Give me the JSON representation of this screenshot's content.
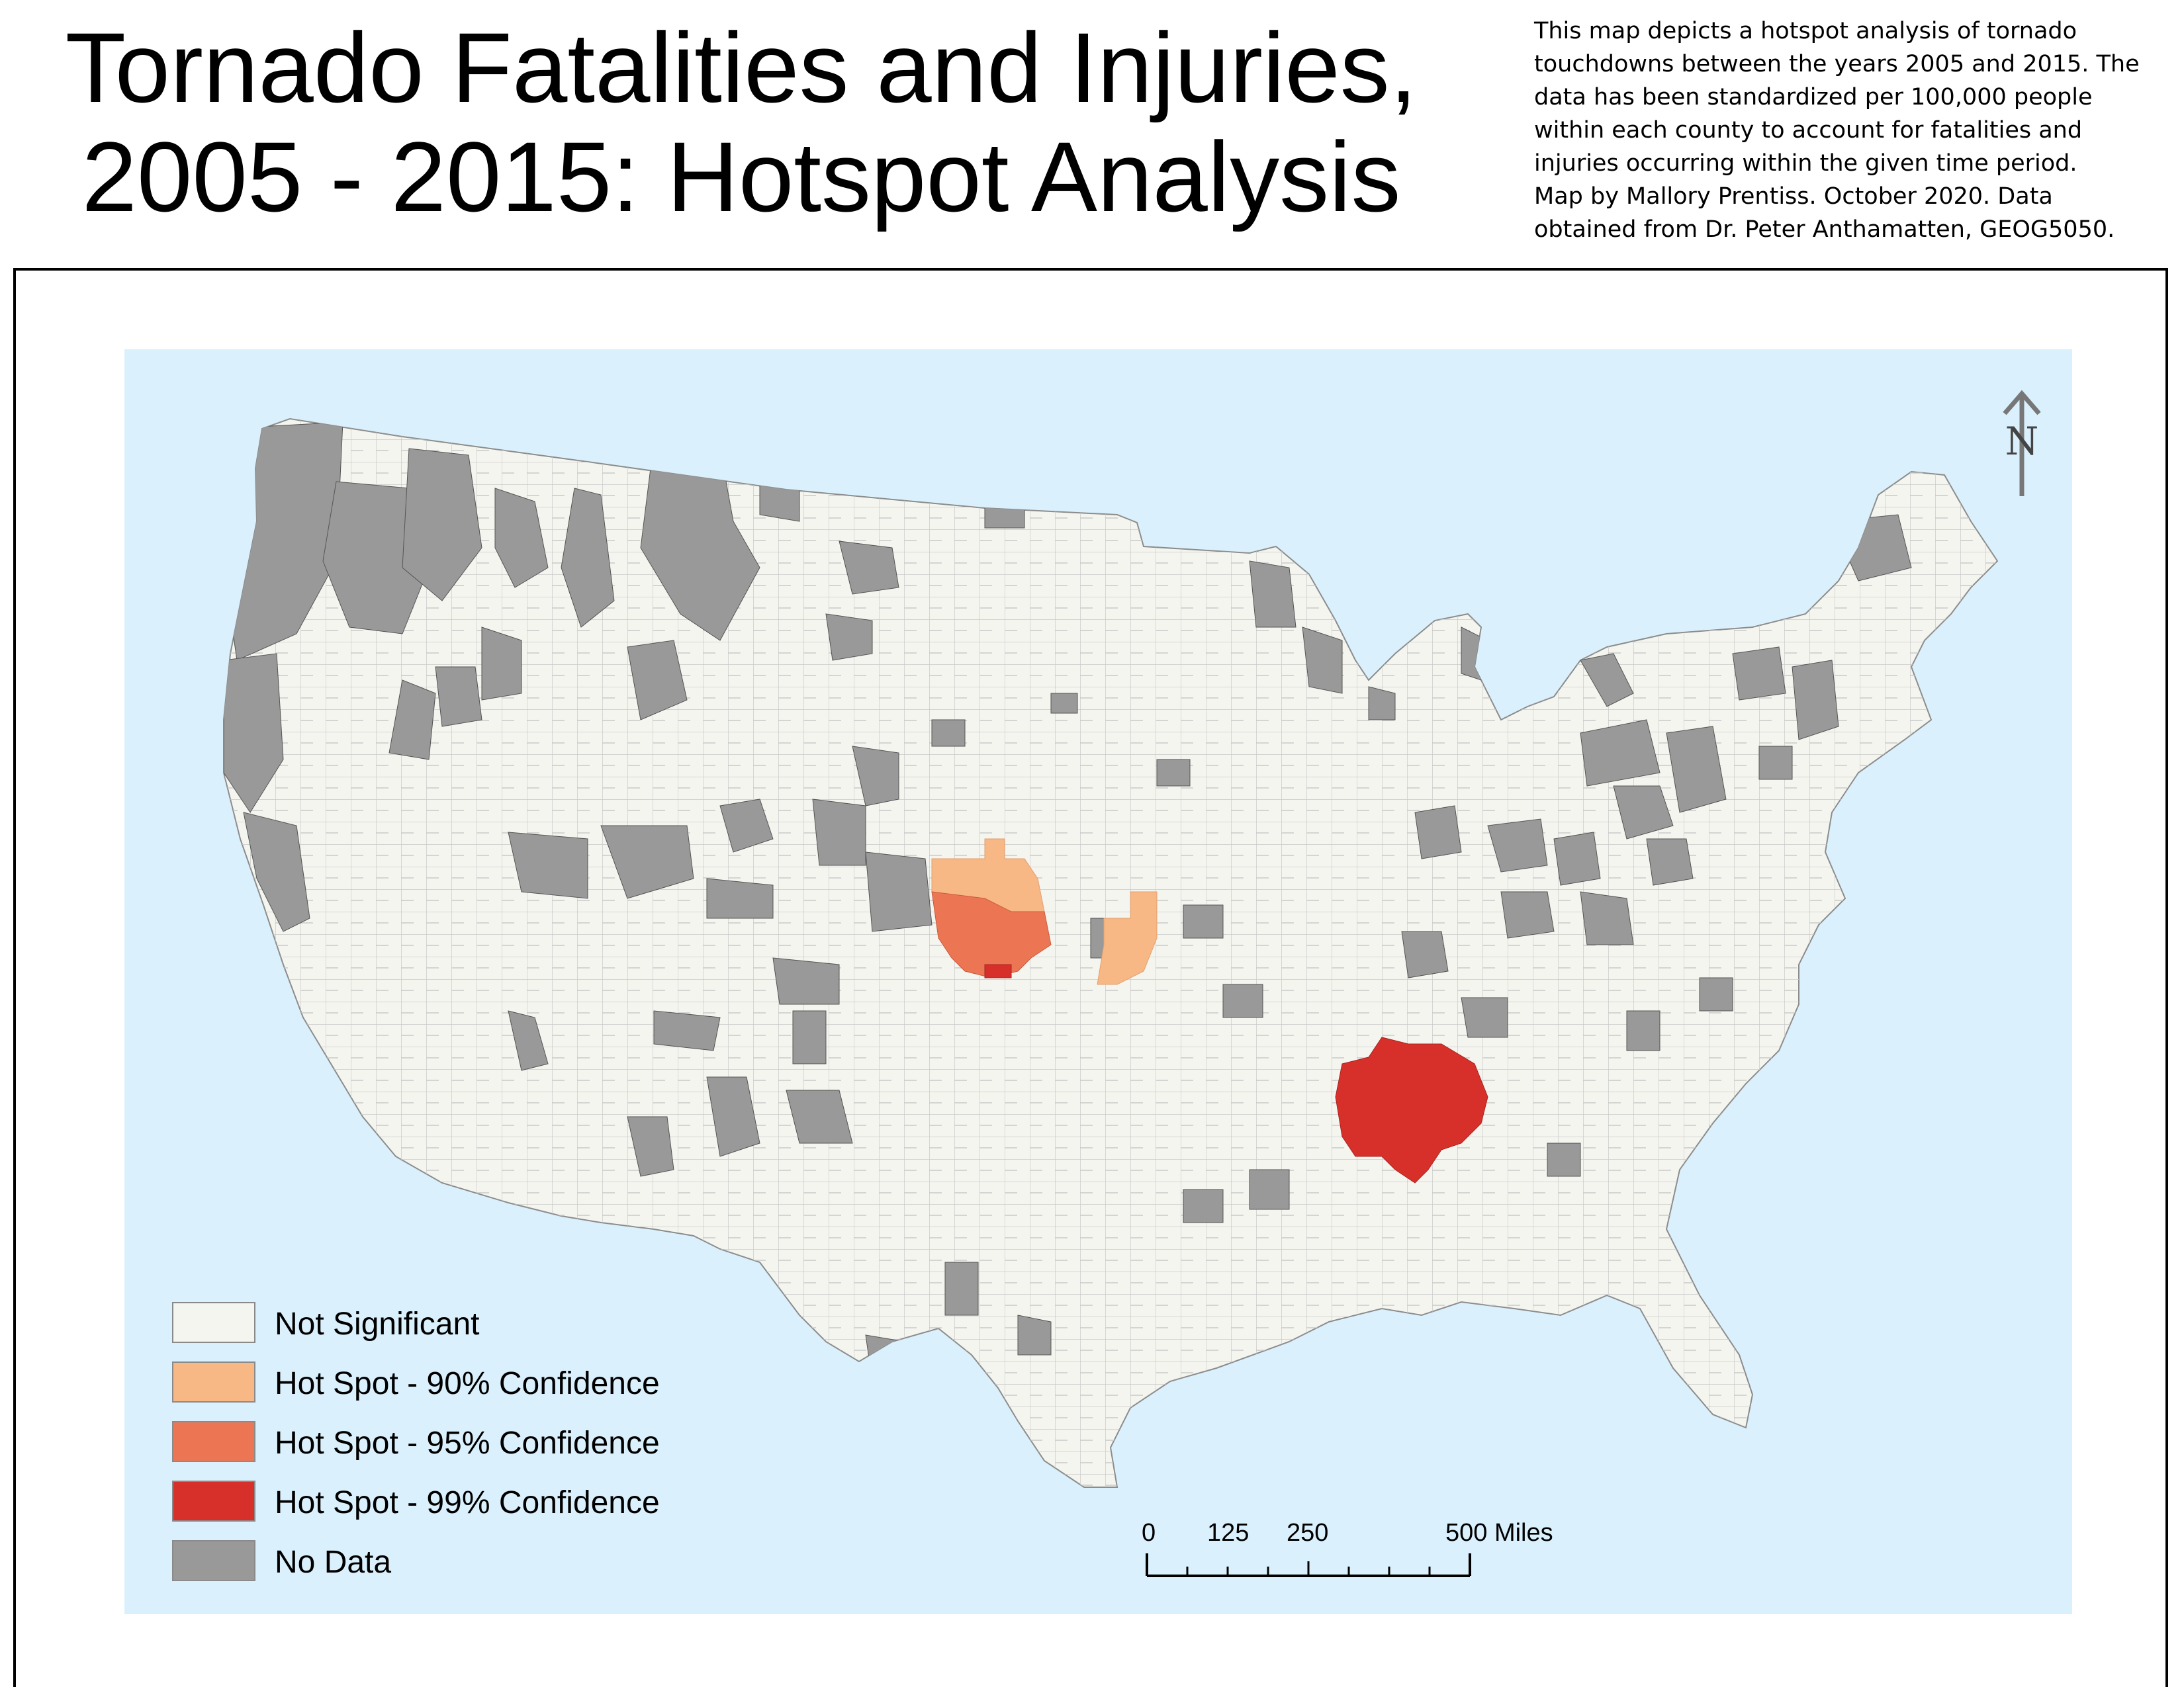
{
  "title": {
    "line1": "Tornado Fatalities and Injuries,",
    "line2": "2005 - 2015: Hotspot Analysis"
  },
  "description": {
    "lines": [
      "This map depicts a hotspot analysis of tornado",
      "touchdowns between the years 2005 and 2015. The",
      "data has been standardized per 100,000 people",
      "within each county to account for fatalities and",
      "injuries occurring within the given time period.",
      "Map by Mallory Prentiss. October 2020. Data",
      "obtained from Dr. Peter Anthamatten, GEOG5050."
    ]
  },
  "north_arrow": {
    "label": "N"
  },
  "legend": {
    "items": [
      {
        "label": "Not Significant",
        "color": "#f5f5f0"
      },
      {
        "label": "Hot Spot - 90% Confidence",
        "color": "#f7b885"
      },
      {
        "label": "Hot Spot - 95% Confidence",
        "color": "#ec7654"
      },
      {
        "label": "Hot Spot - 99% Confidence",
        "color": "#d7302a"
      },
      {
        "label": "No Data",
        "color": "#999999"
      }
    ]
  },
  "scale_bar": {
    "ticks": [
      "0",
      "125",
      "250",
      "500 Miles"
    ]
  },
  "colors": {
    "water": "#daf0fc",
    "land": "#f5f5f0",
    "county_line": "#c8c8c8",
    "no_data": "#999999"
  }
}
